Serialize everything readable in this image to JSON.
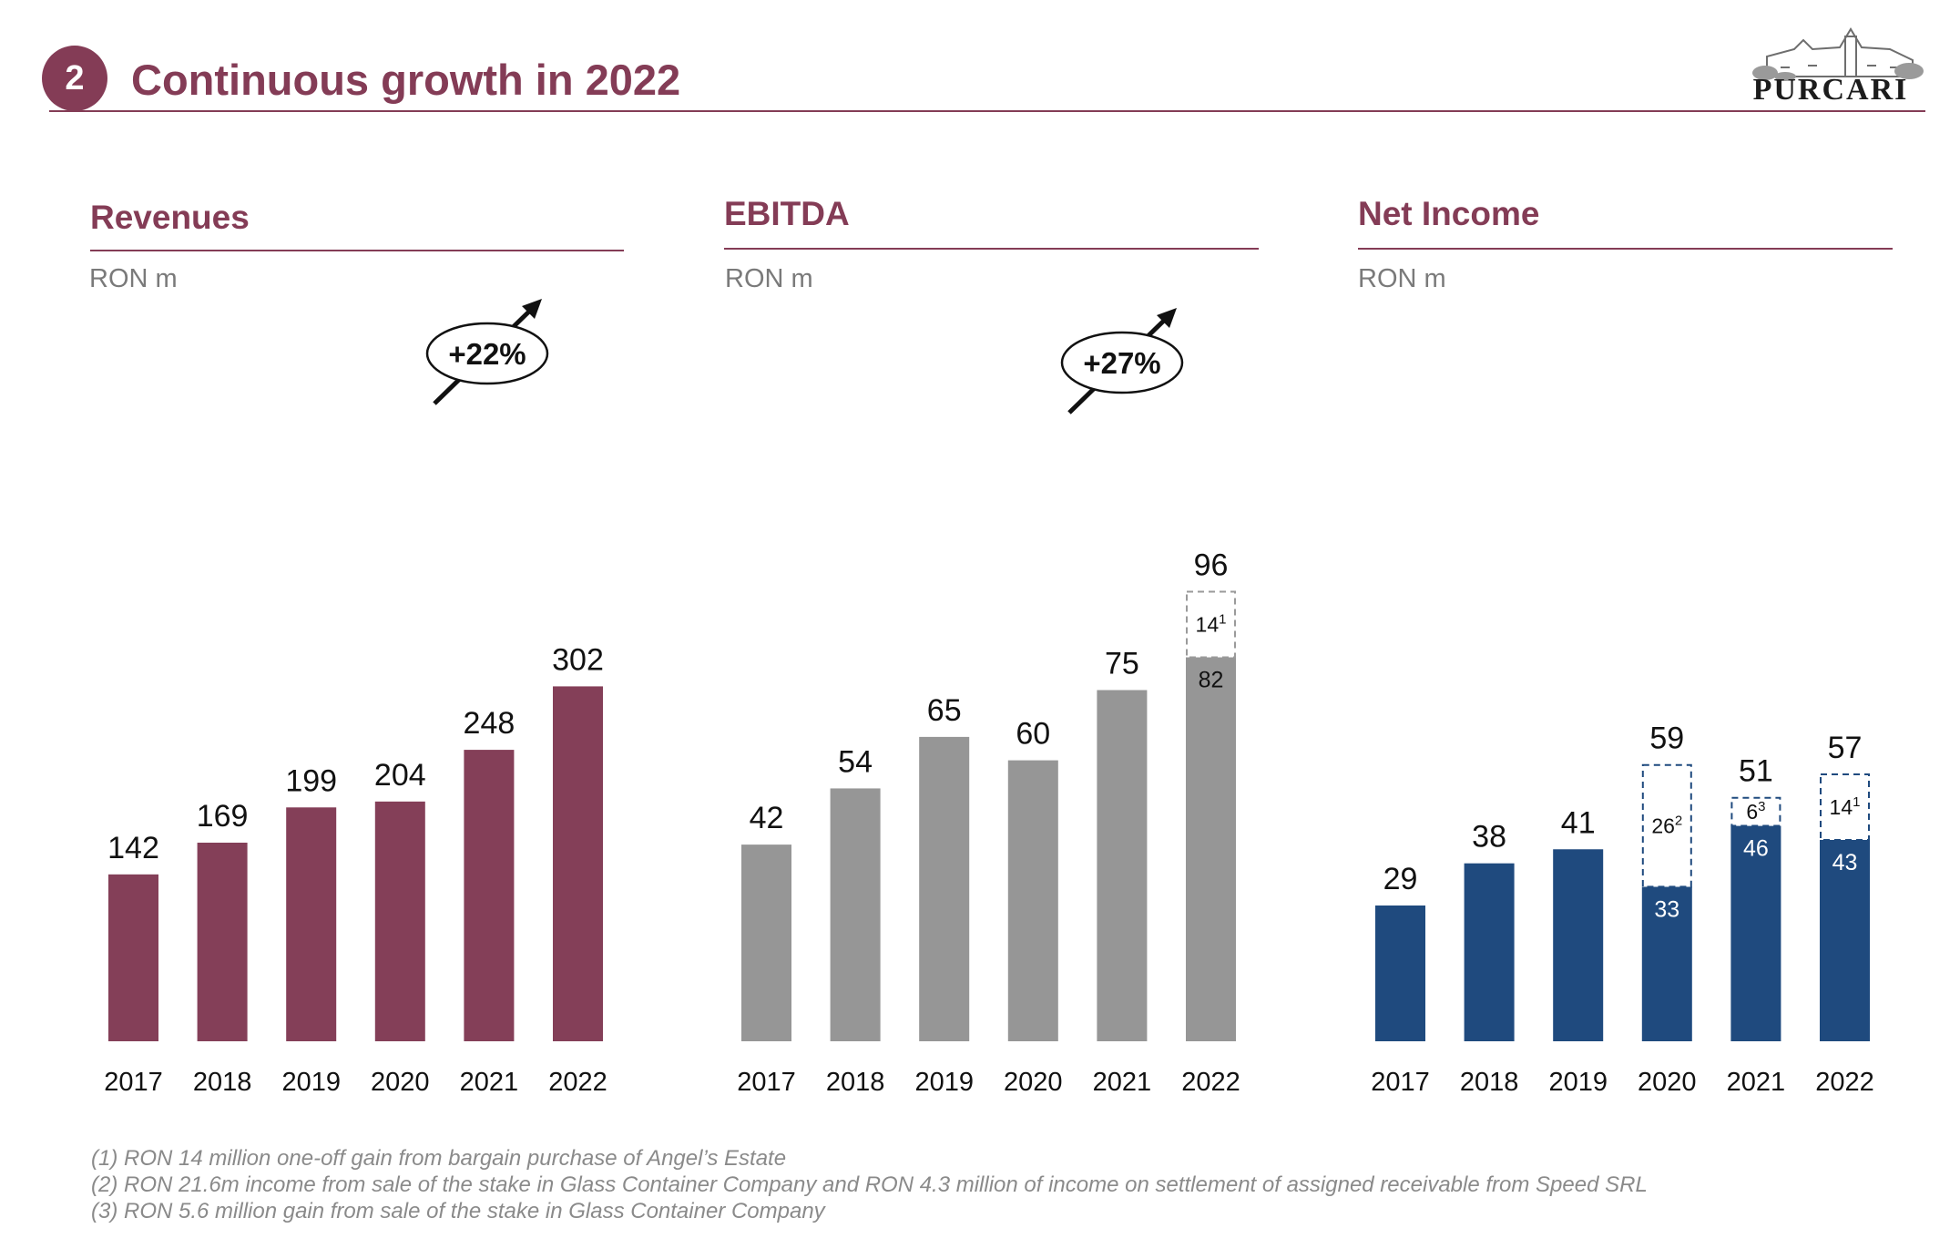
{
  "header": {
    "badge": "2",
    "title": "Continuous growth in 2022",
    "logo_text": "PURCARI"
  },
  "chart_data": [
    {
      "type": "bar",
      "title": "Revenues",
      "ylabel": "RON m",
      "categories": [
        "2017",
        "2018",
        "2019",
        "2020",
        "2021",
        "2022"
      ],
      "values": [
        142,
        169,
        199,
        204,
        248,
        302
      ],
      "color": "#843f58",
      "growth": "+22%",
      "ylim": [
        0,
        302
      ]
    },
    {
      "type": "bar",
      "title": "EBITDA",
      "ylabel": "RON m",
      "categories": [
        "2017",
        "2018",
        "2019",
        "2020",
        "2021",
        "2022"
      ],
      "series": [
        {
          "values": [
            42,
            54,
            65,
            60,
            75,
            82
          ]
        },
        {
          "values": [
            null,
            null,
            null,
            null,
            null,
            14
          ],
          "footnote_marks": [
            null,
            null,
            null,
            null,
            null,
            "1"
          ],
          "style": "dashed-outline"
        }
      ],
      "totals": [
        42,
        54,
        65,
        60,
        75,
        96
      ],
      "color": "#969696",
      "growth": "+27%",
      "ylim": [
        0,
        96
      ]
    },
    {
      "type": "bar",
      "title": "Net Income",
      "ylabel": "RON m",
      "categories": [
        "2017",
        "2018",
        "2019",
        "2020",
        "2021",
        "2022"
      ],
      "series": [
        {
          "values": [
            29,
            38,
            41,
            33,
            46,
            43
          ]
        },
        {
          "values": [
            null,
            null,
            null,
            26,
            6,
            14
          ],
          "footnote_marks": [
            null,
            null,
            null,
            "2",
            "3",
            "1"
          ],
          "style": "dashed-outline"
        }
      ],
      "totals": [
        29,
        38,
        41,
        59,
        51,
        57
      ],
      "color": "#1f4a7e",
      "ylim": [
        0,
        59
      ]
    }
  ],
  "footnotes": [
    "(1) RON 14 million one-off gain from bargain purchase of Angel’s Estate",
    "(2) RON 21.6m income from sale of the stake in Glass Container Company and RON 4.3 million of income on settlement of assigned receivable from Speed SRL",
    "(3) RON 5.6 million gain from sale of the stake in Glass Container Company"
  ]
}
